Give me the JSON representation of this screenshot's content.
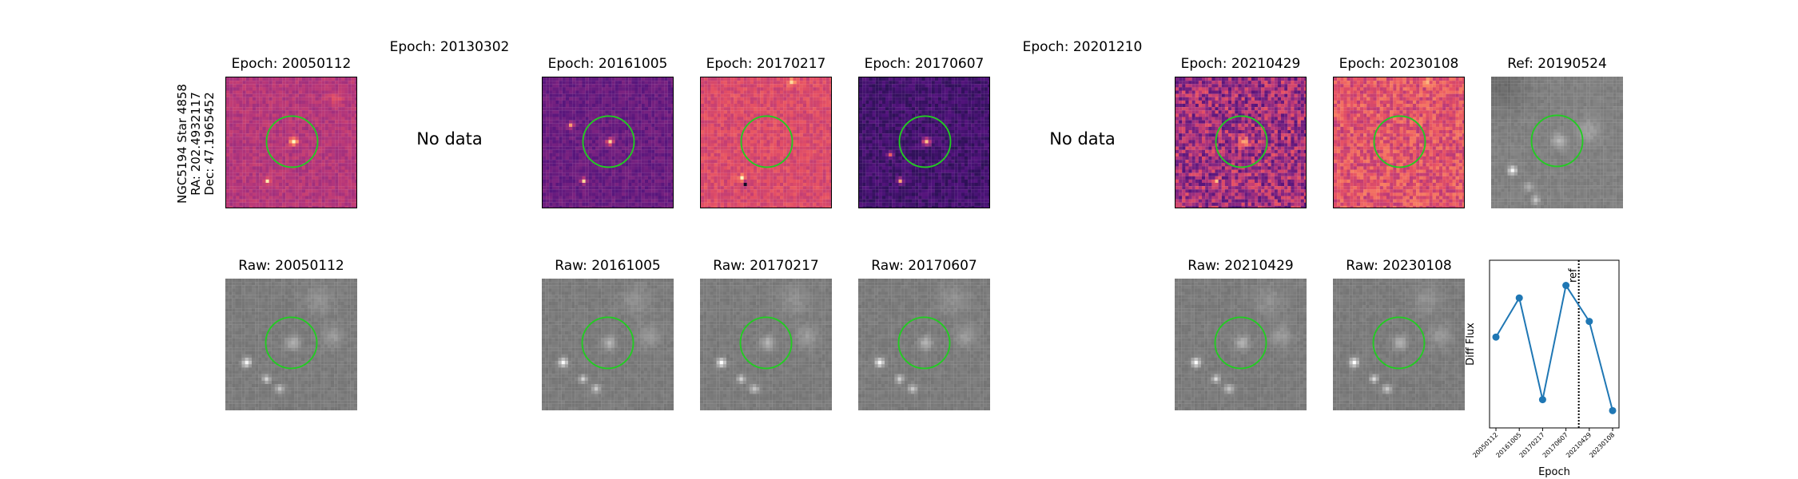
{
  "star_label": {
    "line1": "NGC5194 Star 4858",
    "line2": "RA: 202.4932117",
    "line3": "Dec: 47.1965452"
  },
  "top_row": [
    {
      "title": "Epoch: 20050112",
      "has_data": true,
      "style": "diff"
    },
    {
      "title": "Epoch: 20130302",
      "has_data": false,
      "message": "No data"
    },
    {
      "title": "Epoch: 20161005",
      "has_data": true,
      "style": "diff"
    },
    {
      "title": "Epoch: 20170217",
      "has_data": true,
      "style": "diff"
    },
    {
      "title": "Epoch: 20170607",
      "has_data": true,
      "style": "diff"
    },
    {
      "title": "Epoch: 20201210",
      "has_data": false,
      "message": "No data"
    },
    {
      "title": "Epoch: 20210429",
      "has_data": true,
      "style": "diff"
    },
    {
      "title": "Epoch: 20230108",
      "has_data": true,
      "style": "diff"
    },
    {
      "title": "Ref: 20190524",
      "has_data": true,
      "style": "gray"
    }
  ],
  "bottom_row": [
    {
      "title": "Raw: 20050112"
    },
    {
      "title": "Raw: 20161005"
    },
    {
      "title": "Raw: 20170217"
    },
    {
      "title": "Raw: 20170607"
    },
    {
      "title": "Raw: 20210429"
    },
    {
      "title": "Raw: 20230108"
    }
  ],
  "colors": {
    "circle": "#22cc22",
    "line": "#1f77b4",
    "diff_colormap": "magma",
    "raw_colormap": "gray"
  },
  "chart_data": {
    "type": "line",
    "x": [
      "20050112",
      "20161005",
      "20170217",
      "20170607",
      "20210429",
      "20230108"
    ],
    "values": [
      0.55,
      0.8,
      0.15,
      0.88,
      0.65,
      0.08
    ],
    "ylabel": "Diff Flux",
    "xlabel": "Epoch",
    "ylim": [
      0,
      1
    ],
    "reference_line": {
      "after_index": 3,
      "fraction": 0.55,
      "label": "ref",
      "style": "dotted"
    },
    "grid": false
  }
}
